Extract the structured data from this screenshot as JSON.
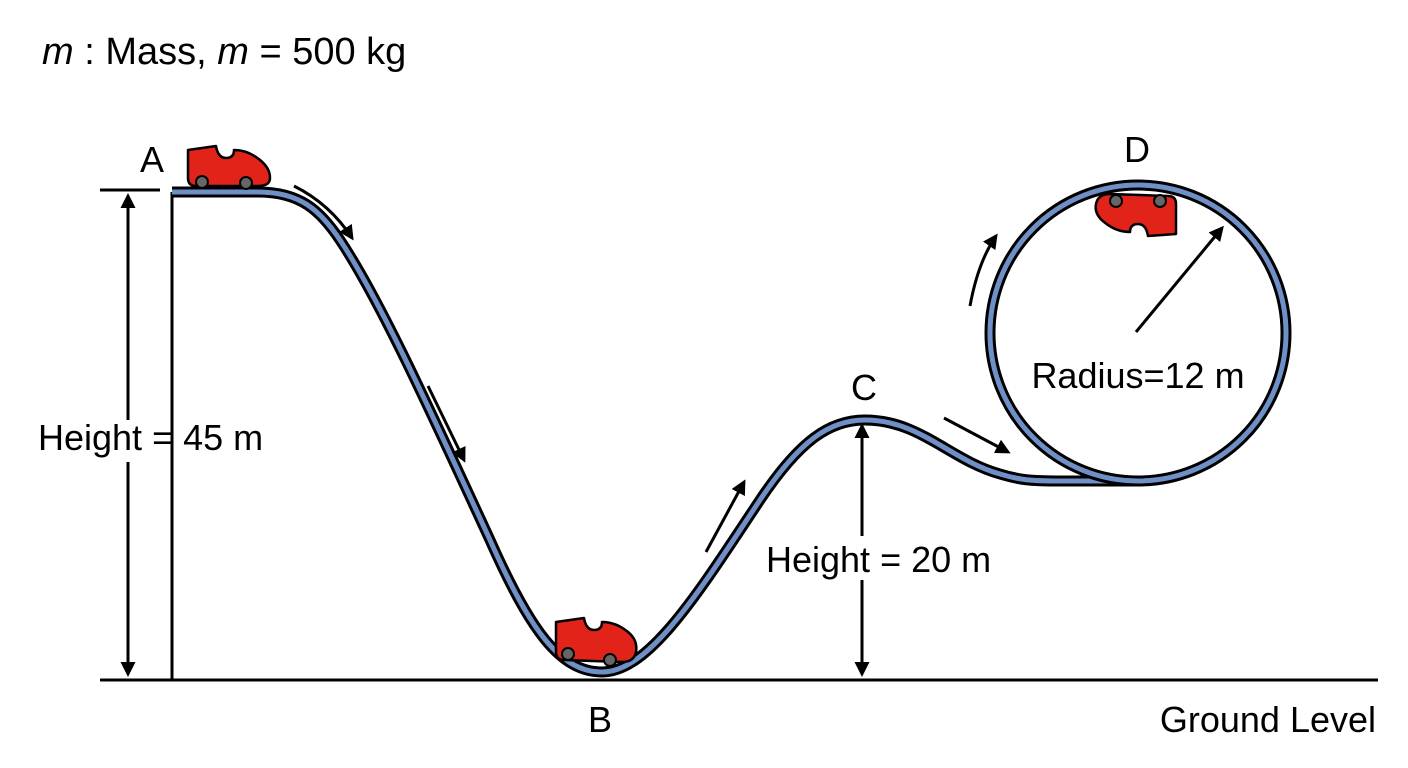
{
  "mass": {
    "symbol": "m",
    "sep": " : Mass, ",
    "symbol2": "m",
    "value": " = 500 kg"
  },
  "points": {
    "a": "A",
    "b": "B",
    "c": "C",
    "d": "D"
  },
  "labels": {
    "height_a": "Height = 45 m",
    "height_c": "Height = 20 m",
    "radius": "Radius=12 m",
    "ground": "Ground Level"
  },
  "colors": {
    "track_fill": "#6f8fc7",
    "track_outline": "#000000",
    "cart": "#e2231a",
    "wheel": "#666666",
    "ink": "#000000"
  }
}
